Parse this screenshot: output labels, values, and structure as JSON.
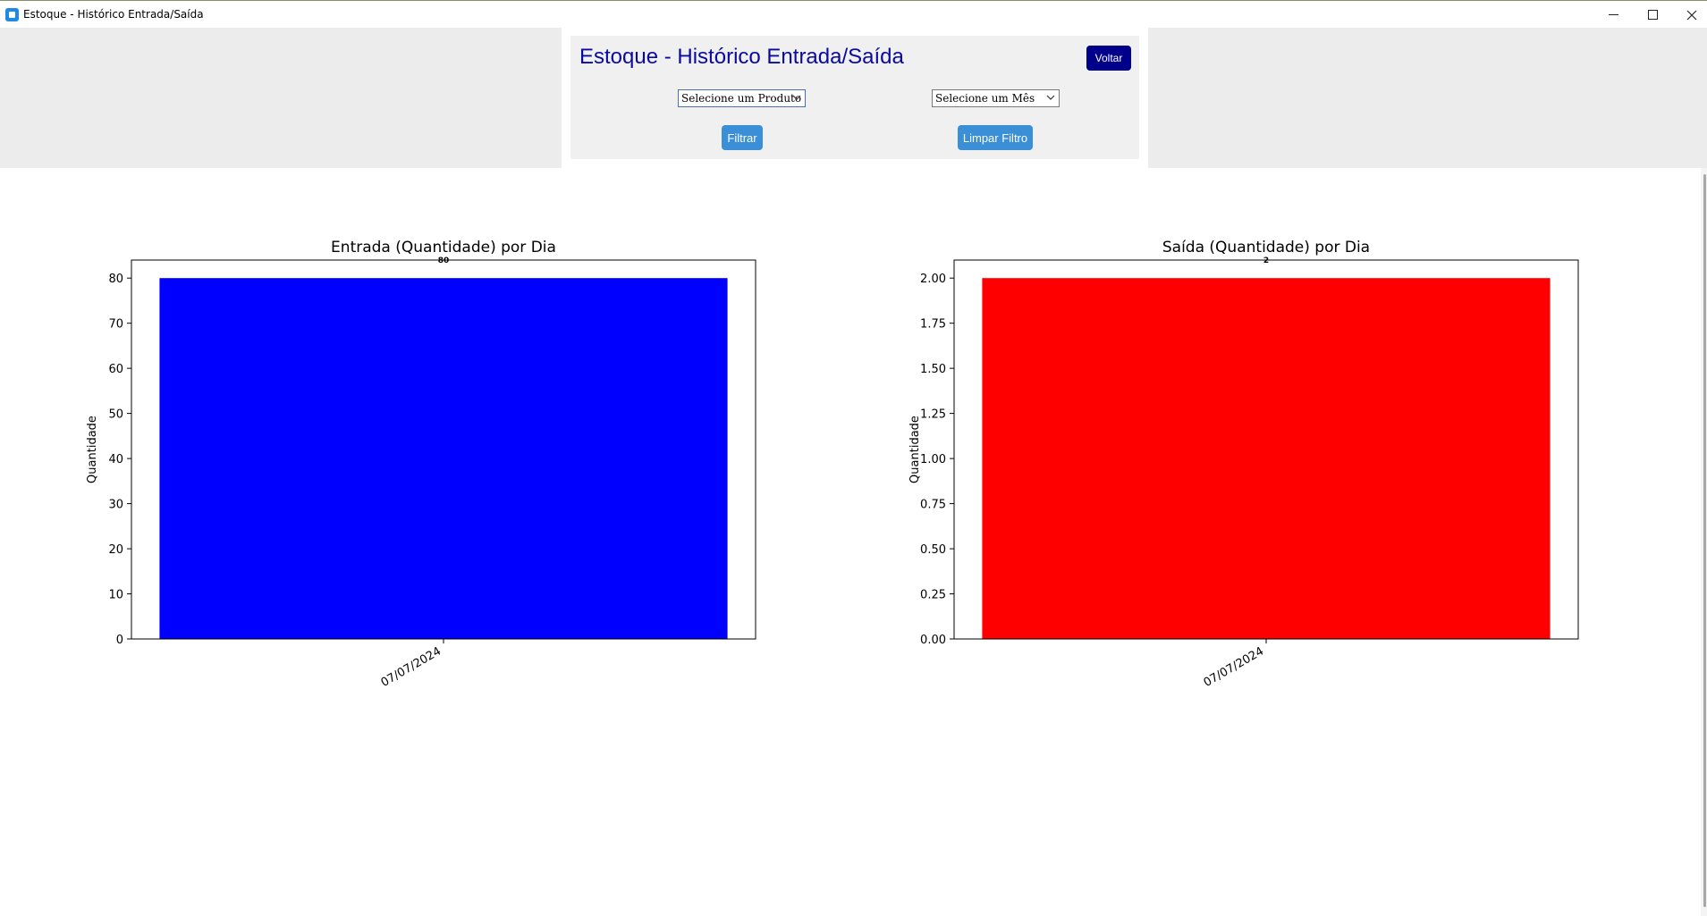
{
  "window": {
    "title": "Estoque - Histórico Entrada/Saída",
    "controls": [
      "minimize-icon",
      "maximize-icon",
      "close-icon"
    ]
  },
  "header": {
    "title": "Estoque - Histórico Entrada/Saída",
    "voltar_label": "Voltar",
    "produto_select": {
      "value": "Selecione um Produto"
    },
    "mes_select": {
      "value": "Selecione um Mês"
    },
    "filtrar_label": "Filtrar",
    "limpar_label": "Limpar Filtro"
  },
  "colors": {
    "title": "#0a0aa0",
    "voltar_bg": "#00008b",
    "action_btn_bg": "#3a8fd6",
    "entrada_bar": "#0000ff",
    "saida_bar": "#ff0000"
  },
  "chart_data": [
    {
      "type": "bar",
      "title": "Entrada (Quantidade) por Dia",
      "xlabel": "",
      "ylabel": "Quantidade",
      "categories": [
        "07/07/2024"
      ],
      "values": [
        80
      ],
      "data_labels": [
        "80"
      ],
      "ylim": [
        0,
        84
      ],
      "yticks": [
        0,
        10,
        20,
        30,
        40,
        50,
        60,
        70,
        80
      ],
      "ytick_labels": [
        "0",
        "10",
        "20",
        "30",
        "40",
        "50",
        "60",
        "70",
        "80"
      ],
      "color": "#0000ff",
      "grid": false
    },
    {
      "type": "bar",
      "title": "Saída (Quantidade) por Dia",
      "xlabel": "",
      "ylabel": "Quantidade",
      "categories": [
        "07/07/2024"
      ],
      "values": [
        2
      ],
      "data_labels": [
        "2"
      ],
      "ylim": [
        0,
        2.1
      ],
      "yticks": [
        0,
        0.25,
        0.5,
        0.75,
        1.0,
        1.25,
        1.5,
        1.75,
        2.0
      ],
      "ytick_labels": [
        "0.00",
        "0.25",
        "0.50",
        "0.75",
        "1.00",
        "1.25",
        "1.50",
        "1.75",
        "2.00"
      ],
      "color": "#ff0000",
      "grid": false
    }
  ]
}
